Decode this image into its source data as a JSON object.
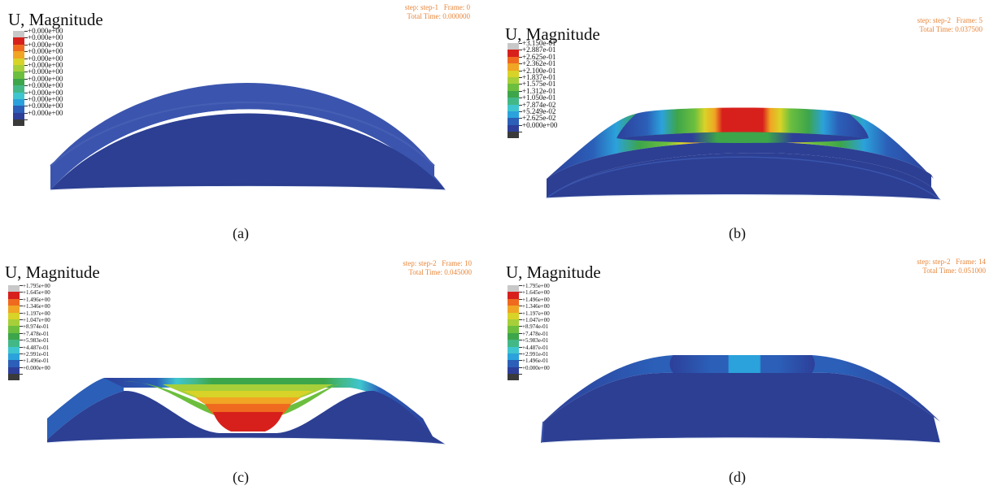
{
  "colors": [
    "#c8c8c8",
    "#d7201c",
    "#ef6a1f",
    "#f0a524",
    "#d8d328",
    "#a6cf3a",
    "#6cbf3e",
    "#3da54a",
    "#43b887",
    "#3fc5cf",
    "#2ba2db",
    "#2b5fb8",
    "#2d3f99",
    "#3a3a3a"
  ],
  "panels": [
    {
      "title": "U, Magnitude",
      "step": "step: step-1",
      "frame": "Frame: 0",
      "time": "Total Time: 0.000000",
      "legend": [
        "+0.000e+00",
        "+0.000e+00",
        "+0.000e+00",
        "+0.000e+00",
        "+0.000e+00",
        "+0.000e+00",
        "+0.000e+00",
        "+0.000e+00",
        "+0.000e+00",
        "+0.000e+00",
        "+0.000e+00",
        "+0.000e+00",
        "+0.000e+00"
      ],
      "caption": "(a)"
    },
    {
      "title": "U, Magnitude",
      "step": "step: step-2",
      "frame": "Frame: 5",
      "time": "Total Time: 0.037500",
      "legend": [
        "+3.150e-01",
        "+2.887e-01",
        "+2.625e-01",
        "+2.362e-01",
        "+2.100e-01",
        "+1.837e-01",
        "+1.575e-01",
        "+1.312e-01",
        "+1.050e-01",
        "+7.874e-02",
        "+5.249e-02",
        "+2.625e-02",
        "+0.000e+00"
      ],
      "caption": "(b)"
    },
    {
      "title": "U, Magnitude",
      "step": "step: step-2",
      "frame": "Frame: 10",
      "time": "Total Time: 0.045000",
      "legend": [
        "+1.795e+00",
        "+1.645e+00",
        "+1.496e+00",
        "+1.346e+00",
        "+1.197e+00",
        "+1.047e+00",
        "+8.974e-01",
        "+7.478e-01",
        "+5.983e-01",
        "+4.487e-01",
        "+2.991e-01",
        "+1.496e-01",
        "+0.000e+00"
      ],
      "caption": "(c)"
    },
    {
      "title": "U, Magnitude",
      "step": "step: step-2",
      "frame": "Frame: 14",
      "time": "Total Time: 0.051000",
      "legend": [
        "+1.795e+00",
        "+1.645e+00",
        "+1.496e+00",
        "+1.346e+00",
        "+1.197e+00",
        "+1.047e+00",
        "+8.974e-01",
        "+7.478e-01",
        "+5.983e-01",
        "+4.487e-01",
        "+2.991e-01",
        "+1.496e-01",
        "+0.000e+00"
      ],
      "caption": "(d)"
    }
  ]
}
